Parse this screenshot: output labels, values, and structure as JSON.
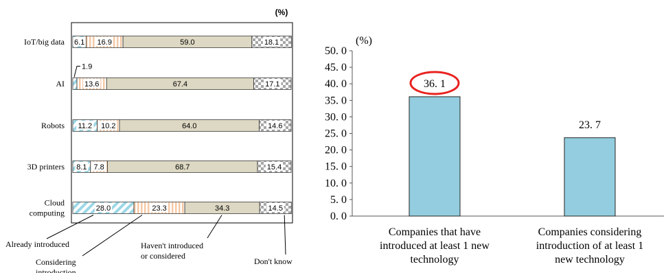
{
  "chart_data": [
    {
      "type": "bar",
      "orientation": "horizontal",
      "stacked": true,
      "unit_label": "(%)",
      "categories": [
        "IoT/big data",
        "AI",
        "Robots",
        "3D printers",
        "Cloud computing"
      ],
      "series": [
        {
          "name": "Already introduced",
          "values": [
            6.1,
            1.9,
            11.2,
            8.1,
            28.0
          ],
          "labels": [
            "6.1",
            "1.9",
            "11.2",
            "8.1",
            "28.0"
          ]
        },
        {
          "name": "Considering introduction",
          "values": [
            16.9,
            13.6,
            10.2,
            7.8,
            23.3
          ],
          "labels": [
            "16.9",
            "13.6",
            "10.2",
            "7.8",
            "23.3"
          ]
        },
        {
          "name": "Haven't introduced or considered",
          "values": [
            59.0,
            67.4,
            64.0,
            68.7,
            34.3
          ],
          "labels": [
            "59.0",
            "67.4",
            "64.0",
            "68.7",
            "34.3"
          ]
        },
        {
          "name": "Don't know",
          "values": [
            18.1,
            17.1,
            14.6,
            15.4,
            14.5
          ],
          "labels": [
            "18.1",
            "17.1",
            "14.6",
            "15.4",
            "14.5"
          ]
        }
      ],
      "legend_labels": {
        "already": "Already introduced",
        "considering": "Considering",
        "considering2": "introduction",
        "havent1": "Haven't introduced",
        "havent2": "or considered",
        "dont_know": "Don't know"
      },
      "category_lines": [
        [
          "IoT/big data"
        ],
        [
          "AI"
        ],
        [
          "Robots"
        ],
        [
          "3D printers"
        ],
        [
          "Cloud",
          "computing"
        ]
      ],
      "colors": {
        "already": "#9dd7e6",
        "considering": "#f5c9a6",
        "havent": "#ddd8c3",
        "dont_know": "#a6a6a6"
      },
      "xlim": [
        0,
        100
      ],
      "legend_placement": "bottom"
    },
    {
      "type": "bar",
      "unit_label": "(%)",
      "categories": [
        [
          "Companies that have",
          "introduced at least 1 new",
          "technology"
        ],
        [
          "Companies considering",
          "introduction of at least 1",
          "new technology"
        ]
      ],
      "values": [
        36.1,
        23.7
      ],
      "value_labels": [
        "36. 1",
        "23. 7"
      ],
      "highlighted_index": 0,
      "ylim": [
        0,
        50
      ],
      "yticks": [
        0,
        5,
        10,
        15,
        20,
        25,
        30,
        35,
        40,
        45,
        50
      ],
      "ytick_labels": [
        "0. 0",
        "5. 0",
        "10. 0",
        "15. 0",
        "20. 0",
        "25. 0",
        "30. 0",
        "35. 0",
        "40. 0",
        "45. 0",
        "50. 0"
      ],
      "colors": {
        "bar": "#93cddf",
        "highlight": "#e8221f"
      },
      "grid": false
    }
  ]
}
